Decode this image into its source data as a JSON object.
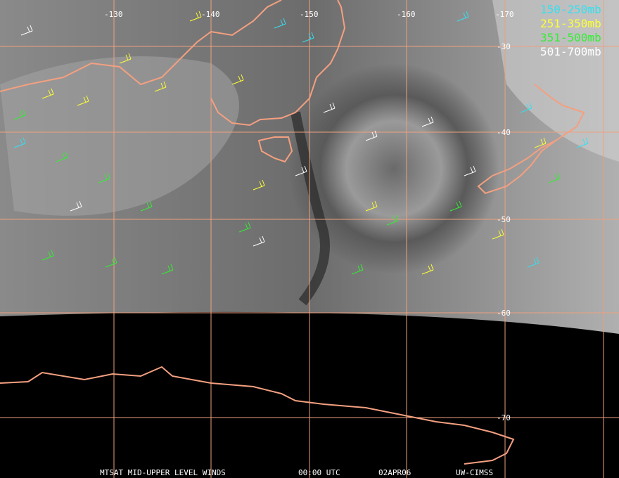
{
  "map": {
    "longitude_labels": [
      "-130",
      "-140",
      "-150",
      "-160",
      "-170"
    ],
    "latitude_labels": [
      "-30",
      "-40",
      "-50",
      "-60",
      "-70"
    ]
  },
  "legend": [
    {
      "label": "150-250mb",
      "color": "#33e0f0"
    },
    {
      "label": "251-350mb",
      "color": "#ffff33"
    },
    {
      "label": "351-500mb",
      "color": "#33ee33"
    },
    {
      "label": "501-700mb",
      "color": "#ffffff"
    }
  ],
  "footer": [
    "MTSAT MID-UPPER LEVEL WINDS",
    "00:00 UTC",
    "02APR06",
    "UW-CIMSS"
  ]
}
